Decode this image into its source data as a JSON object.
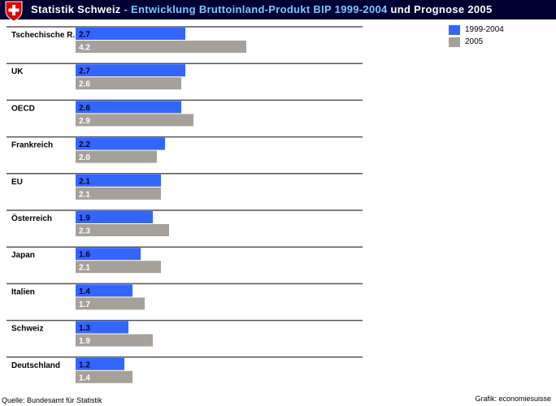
{
  "header": {
    "title_part1": "Statistik Schweiz",
    "title_sep": " - ",
    "title_part2": "Entwicklung Bruttoinland-Produkt BIP 1999-2004",
    "title_part3": " und Prognose 2005"
  },
  "footer": {
    "source": "Quelle: Bundesamt für Statistik",
    "credit": "Grafik: economiesuisse"
  },
  "colors": {
    "header_bg": "#000033",
    "series_1999_2004": "#3366ff",
    "series_2005": "#a6a09a",
    "separator": "#555555"
  },
  "chart_data": {
    "type": "bar",
    "orientation": "horizontal",
    "categories": [
      "Tschechische R.",
      "UK",
      "OECD",
      "Frankreich",
      "EU",
      "Österreich",
      "Japan",
      "Italien",
      "Schweiz",
      "Deutschland"
    ],
    "series": [
      {
        "name": "1999-2004",
        "color": "#3366ff",
        "values": [
          2.7,
          2.7,
          2.6,
          2.2,
          2.1,
          1.9,
          1.6,
          1.4,
          1.3,
          1.2
        ],
        "labels": [
          "2.7",
          "2.7",
          "2.6",
          "2.2",
          "2.1",
          "1.9",
          "1.6",
          "1.4",
          "1.3",
          "1.2"
        ]
      },
      {
        "name": "2005",
        "color": "#a6a09a",
        "values": [
          4.2,
          2.6,
          2.9,
          2.0,
          2.1,
          2.3,
          2.1,
          1.7,
          1.9,
          1.4
        ],
        "labels": [
          "4.2",
          "2.6",
          "2.9",
          "2.0",
          "2.1",
          "2.3",
          "2.1",
          "1.7",
          "1.9",
          "1.4"
        ]
      }
    ],
    "legend_position": "top-right",
    "grid": false
  }
}
